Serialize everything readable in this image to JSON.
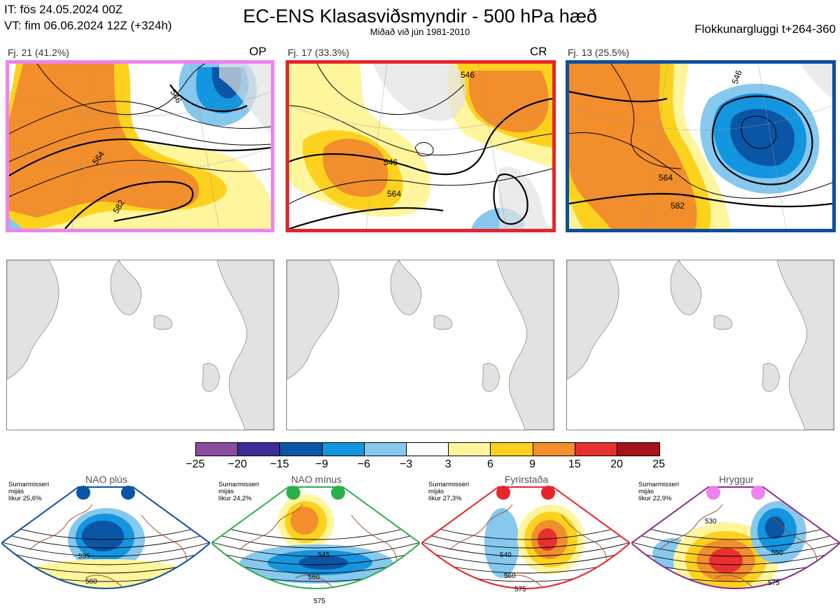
{
  "header": {
    "it_line": "IT: fös 24.05.2024 00Z",
    "vt_line": "VT: fim 06.06.2024 12Z  (+324h)",
    "title": "EC-ENS Klasasviðsmyndir - 500 hPa hæð",
    "subtitle": "Miðað við jún 1981-2010",
    "window": "Flokkunargluggi t+264-360"
  },
  "panels": [
    {
      "label": "Fj. 21 (41.2%)",
      "tag": "OP",
      "frame_color": "#ee82ee",
      "contour_labels": [
        "546",
        "564",
        "582"
      ]
    },
    {
      "label": "Fj. 17 (33.3%)",
      "tag": "CR",
      "frame_color": "#e8242a",
      "contour_labels": [
        "546",
        "564",
        "546"
      ]
    },
    {
      "label": "Fj. 13 (25.5%)",
      "tag": "",
      "frame_color": "#0a4fa0",
      "contour_labels": [
        "546",
        "564",
        "582"
      ]
    }
  ],
  "colorbar": {
    "ticks": [
      "−25",
      "−20",
      "−15",
      "−9",
      "−6",
      "−3",
      "3",
      "6",
      "9",
      "15",
      "20",
      "25"
    ],
    "colors": [
      "#8a4c9e",
      "#3d2d99",
      "#0a55a5",
      "#1395df",
      "#86c8ee",
      "#ffffff",
      "#fff59c",
      "#fdd21f",
      "#f28e2b",
      "#e8302e",
      "#a8121a"
    ]
  },
  "regimes": [
    {
      "name": "NAO plús",
      "note": [
        "Sumarmisseri",
        "mijás",
        "líkur 25,6%"
      ],
      "dot_color": "#0a55a5",
      "frame_color": "#0a4fa0",
      "contour_labels": [
        "535",
        "560"
      ]
    },
    {
      "name": "NAO mínus",
      "note": [
        "Sumarmisseri",
        "mijás",
        "líkur 24,2%"
      ],
      "dot_color": "#2ab04a",
      "frame_color": "#2ab04a",
      "contour_labels": [
        "545",
        "560",
        "575"
      ]
    },
    {
      "name": "Fyrirstaða",
      "note": [
        "Sumarmisseri",
        "mijás",
        "líkur 27,3%"
      ],
      "dot_color": "#e8242a",
      "frame_color": "#e8242a",
      "contour_labels": [
        "540",
        "560",
        "575"
      ]
    },
    {
      "name": "Hryggur",
      "note": [
        "Sumarmisseri",
        "mijás",
        "líkur 22,9%"
      ],
      "dot_color": "#ee82ee",
      "frame_color": "#8b2c8e",
      "contour_labels": [
        "530",
        "550",
        "575"
      ]
    }
  ]
}
